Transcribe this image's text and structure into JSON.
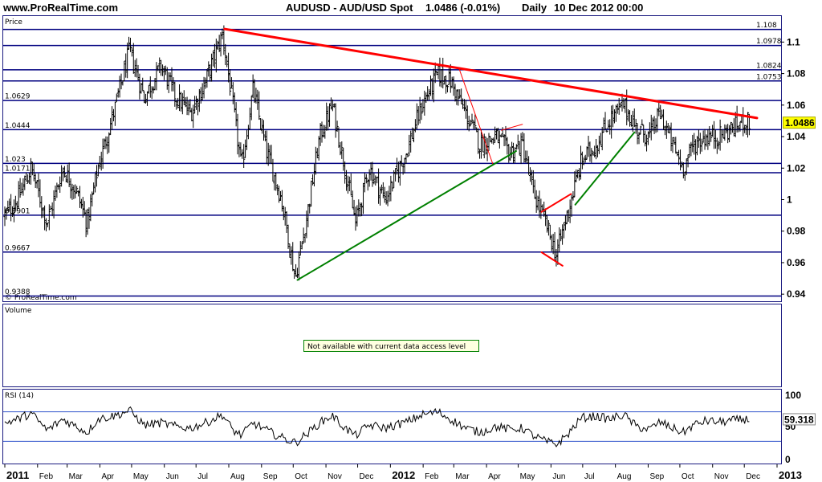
{
  "header": {
    "site": "www.ProRealTime.com",
    "title": "AUDUSD - AUD/USD Spot",
    "quote": "1.0486 (-0.01%)",
    "period": "Daily",
    "date": "10 Dec 2012 00:00"
  },
  "panels": {
    "price_label": "Price",
    "volume_label": "Volume",
    "volume_notice": "Not available with current data access level",
    "rsi_label": "RSI (14)",
    "watermark": "© ProRealTime.com"
  },
  "colors": {
    "border": "#1a1a80",
    "hline": "#000080",
    "candle": "#000000",
    "red": "#ff0000",
    "green": "#008000",
    "rsi_ref": "#3355cc",
    "notice_bg": "#ffffe0",
    "notice_border": "#008000"
  },
  "chart_data": {
    "type": "candlestick",
    "symbol": "AUDUSD",
    "x_labels": [
      "2011",
      "Feb",
      "Mar",
      "Apr",
      "May",
      "Jun",
      "Jul",
      "Aug",
      "Sep",
      "Oct",
      "Nov",
      "Dec",
      "2012",
      "Feb",
      "Mar",
      "Apr",
      "May",
      "Jun",
      "Jul",
      "Aug",
      "Sep",
      "Oct",
      "Nov",
      "Dec",
      "2013"
    ],
    "x_label_days": [
      0,
      31,
      59,
      90,
      120,
      151,
      181,
      212,
      243,
      273,
      304,
      334,
      365,
      396,
      425,
      456,
      486,
      517,
      547,
      578,
      609,
      639,
      670,
      700,
      731
    ],
    "x_label_bold": [
      "2011",
      "2012",
      "2013"
    ],
    "y_ticks": [
      "1.1",
      "1.08",
      "1.06",
      "1.04",
      "1.02",
      "1",
      "0.98",
      "0.96",
      "0.94"
    ],
    "y_tick_values": [
      1.1,
      1.08,
      1.06,
      1.04,
      1.02,
      1.0,
      0.98,
      0.96,
      0.94
    ],
    "ylim": [
      0.9355,
      1.1165
    ],
    "last_price": "1.0486",
    "last_value": 1.0486,
    "horizontal_levels": [
      {
        "value": 1.108,
        "label": "1.108",
        "side": "right"
      },
      {
        "value": 1.0978,
        "label": "1.0978",
        "side": "right"
      },
      {
        "value": 1.0824,
        "label": "1.0824",
        "side": "right"
      },
      {
        "value": 1.0753,
        "label": "1.0753",
        "side": "right"
      },
      {
        "value": 1.0629,
        "label": "1.0629",
        "side": "left"
      },
      {
        "value": 1.0444,
        "label": "1.0444",
        "side": "left"
      },
      {
        "value": 1.023,
        "label": "1.023",
        "side": "left"
      },
      {
        "value": 1.0171,
        "label": "1.0171",
        "side": "left"
      },
      {
        "value": 0.9901,
        "label": "0.9901",
        "side": "left"
      },
      {
        "value": 0.9667,
        "label": "0.9667",
        "side": "left"
      },
      {
        "value": 0.9388,
        "label": "0.9388",
        "side": "left"
      }
    ],
    "price_path": [
      [
        0,
        0.99
      ],
      [
        12,
        1.0
      ],
      [
        25,
        1.02
      ],
      [
        40,
        0.985
      ],
      [
        55,
        1.02
      ],
      [
        68,
        1.005
      ],
      [
        78,
        0.985
      ],
      [
        88,
        1.02
      ],
      [
        105,
        1.06
      ],
      [
        118,
        1.095
      ],
      [
        132,
        1.065
      ],
      [
        148,
        1.085
      ],
      [
        162,
        1.065
      ],
      [
        176,
        1.055
      ],
      [
        190,
        1.075
      ],
      [
        206,
        1.105
      ],
      [
        216,
        1.06
      ],
      [
        224,
        1.02
      ],
      [
        235,
        1.07
      ],
      [
        248,
        1.03
      ],
      [
        262,
        1.0
      ],
      [
        275,
        0.95
      ],
      [
        286,
        0.99
      ],
      [
        298,
        1.04
      ],
      [
        310,
        1.06
      ],
      [
        322,
        1.02
      ],
      [
        332,
        0.985
      ],
      [
        345,
        1.02
      ],
      [
        360,
        1.0
      ],
      [
        380,
        1.03
      ],
      [
        395,
        1.06
      ],
      [
        410,
        1.08
      ],
      [
        422,
        1.075
      ],
      [
        436,
        1.055
      ],
      [
        450,
        1.035
      ],
      [
        465,
        1.04
      ],
      [
        478,
        1.03
      ],
      [
        490,
        1.035
      ],
      [
        500,
        1.005
      ],
      [
        512,
        0.985
      ],
      [
        522,
        0.965
      ],
      [
        532,
        0.99
      ],
      [
        546,
        1.025
      ],
      [
        560,
        1.035
      ],
      [
        572,
        1.05
      ],
      [
        586,
        1.06
      ],
      [
        598,
        1.045
      ],
      [
        610,
        1.04
      ],
      [
        620,
        1.055
      ],
      [
        632,
        1.035
      ],
      [
        642,
        1.02
      ],
      [
        652,
        1.035
      ],
      [
        664,
        1.04
      ],
      [
        676,
        1.04
      ],
      [
        688,
        1.045
      ],
      [
        700,
        1.05
      ],
      [
        706,
        1.0486
      ]
    ],
    "trendlines": [
      {
        "color": "red",
        "width": 3,
        "from": [
          208,
          1.1083
        ],
        "to": [
          712,
          1.0518
        ]
      },
      {
        "color": "red",
        "width": 1,
        "from": [
          430,
          1.0832
        ],
        "to": [
          462,
          1.0225
        ]
      },
      {
        "color": "red",
        "width": 1,
        "from": [
          470,
          1.044
        ],
        "to": [
          490,
          1.0478
        ]
      },
      {
        "color": "red",
        "width": 2,
        "from": [
          508,
          0.9922
        ],
        "to": [
          536,
          1.0036
        ]
      },
      {
        "color": "red",
        "width": 2,
        "from": [
          508,
          0.9666
        ],
        "to": [
          528,
          0.958
        ]
      },
      {
        "color": "green",
        "width": 2,
        "from": [
          277,
          0.949
        ],
        "to": [
          484,
          1.0308
        ]
      },
      {
        "color": "green",
        "width": 2,
        "from": [
          540,
          0.9968
        ],
        "to": [
          596,
          1.0427
        ]
      }
    ],
    "rsi": {
      "name": "RSI (14)",
      "ylim": [
        0,
        100
      ],
      "ticks": [
        "100",
        "50",
        "0"
      ],
      "tick_values": [
        100,
        50,
        0
      ],
      "reference_levels": [
        70,
        30
      ],
      "last": "59.318",
      "last_value": 59.318,
      "path": [
        [
          0,
          55
        ],
        [
          12,
          60
        ],
        [
          25,
          68
        ],
        [
          40,
          45
        ],
        [
          55,
          60
        ],
        [
          68,
          50
        ],
        [
          78,
          42
        ],
        [
          88,
          60
        ],
        [
          105,
          65
        ],
        [
          118,
          72
        ],
        [
          132,
          52
        ],
        [
          148,
          55
        ],
        [
          162,
          50
        ],
        [
          176,
          48
        ],
        [
          190,
          55
        ],
        [
          206,
          66
        ],
        [
          216,
          45
        ],
        [
          224,
          38
        ],
        [
          235,
          55
        ],
        [
          248,
          45
        ],
        [
          262,
          35
        ],
        [
          275,
          28
        ],
        [
          286,
          40
        ],
        [
          298,
          55
        ],
        [
          310,
          65
        ],
        [
          322,
          48
        ],
        [
          332,
          38
        ],
        [
          345,
          52
        ],
        [
          360,
          48
        ],
        [
          380,
          56
        ],
        [
          395,
          66
        ],
        [
          410,
          70
        ],
        [
          422,
          60
        ],
        [
          436,
          48
        ],
        [
          450,
          42
        ],
        [
          465,
          50
        ],
        [
          478,
          46
        ],
        [
          490,
          48
        ],
        [
          500,
          38
        ],
        [
          512,
          30
        ],
        [
          522,
          26
        ],
        [
          532,
          38
        ],
        [
          546,
          62
        ],
        [
          560,
          64
        ],
        [
          572,
          60
        ],
        [
          586,
          66
        ],
        [
          598,
          50
        ],
        [
          610,
          46
        ],
        [
          620,
          56
        ],
        [
          632,
          48
        ],
        [
          642,
          42
        ],
        [
          652,
          52
        ],
        [
          664,
          58
        ],
        [
          676,
          56
        ],
        [
          688,
          58
        ],
        [
          700,
          60
        ],
        [
          706,
          59.3
        ]
      ]
    }
  }
}
